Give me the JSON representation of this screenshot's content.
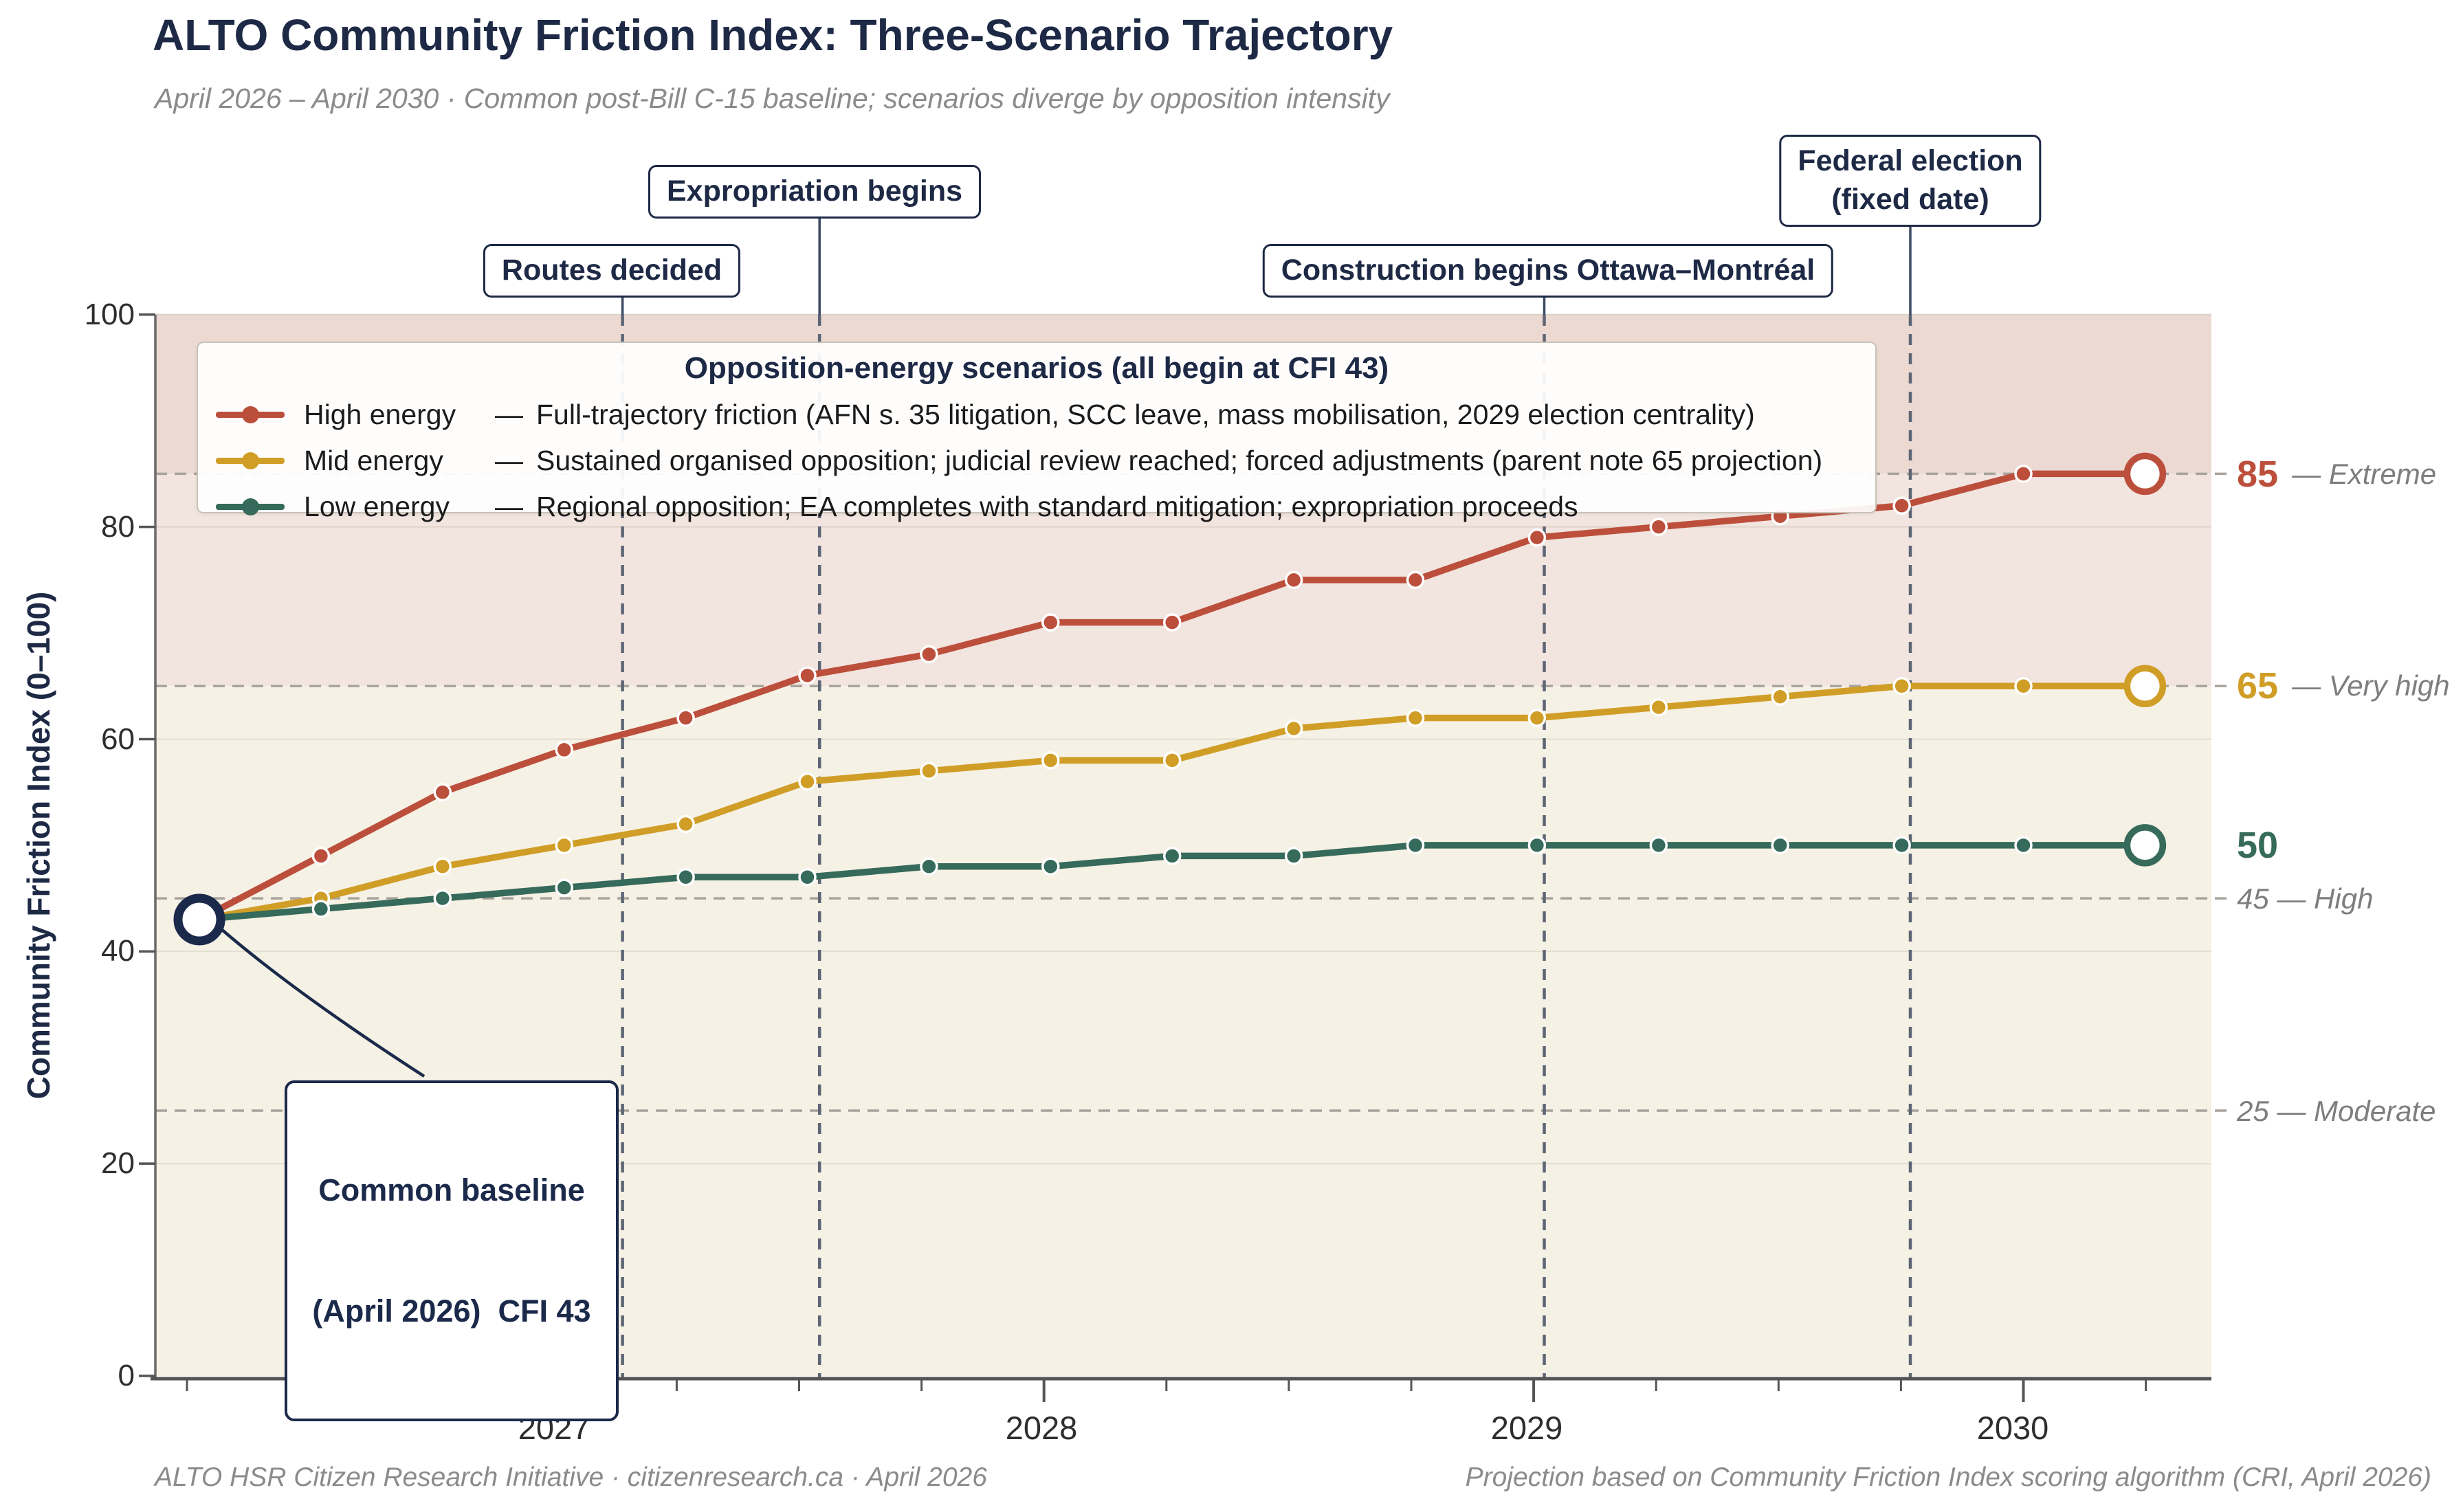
{
  "header": {
    "title": "ALTO Community Friction Index: Three-Scenario Trajectory",
    "subtitle": "April 2026 – April 2030   ·   Common post-Bill C-15 baseline; scenarios diverge by opposition intensity"
  },
  "chart_data": {
    "type": "line",
    "title": "ALTO Community Friction Index: Three-Scenario Trajectory",
    "ylabel": "Community Friction Index (0–100)",
    "ylim": [
      0,
      100
    ],
    "yticks": [
      0,
      20,
      40,
      60,
      80,
      100
    ],
    "x_quarters": [
      "Apr 2026",
      "Jul 2026",
      "Oct 2026",
      "Jan 2027",
      "Apr 2027",
      "Jul 2027",
      "Oct 2027",
      "Jan 2028",
      "Apr 2028",
      "Jul 2028",
      "Oct 2028",
      "Jan 2029",
      "Apr 2029",
      "Jul 2029",
      "Oct 2029",
      "Jan 2030",
      "Apr 2030"
    ],
    "xticks": [
      {
        "label": "2027",
        "q": 3
      },
      {
        "label": "2028",
        "q": 7
      },
      {
        "label": "2029",
        "q": 11
      },
      {
        "label": "2030",
        "q": 15
      }
    ],
    "baseline_value": 43,
    "series": [
      {
        "id": "high",
        "name": "High energy",
        "color": "#bc4f3c",
        "values": [
          43,
          49,
          55,
          59,
          62,
          66,
          68,
          71,
          71,
          75,
          75,
          79,
          80,
          81,
          82,
          85,
          85
        ],
        "end_value": 85
      },
      {
        "id": "mid",
        "name": "Mid energy",
        "color": "#d09e27",
        "values": [
          43,
          45,
          48,
          50,
          52,
          56,
          57,
          58,
          58,
          61,
          62,
          62,
          63,
          64,
          65,
          65,
          65
        ],
        "end_value": 65
      },
      {
        "id": "low",
        "name": "Low energy",
        "color": "#366a5a",
        "values": [
          43,
          44,
          45,
          46,
          47,
          47,
          48,
          48,
          49,
          49,
          50,
          50,
          50,
          50,
          50,
          50,
          50
        ],
        "end_value": 50
      }
    ],
    "thresholds": [
      {
        "value": 85,
        "label": "Extreme"
      },
      {
        "value": 65,
        "label": "Very high"
      },
      {
        "value": 45,
        "label": "High"
      },
      {
        "value": 25,
        "label": "Moderate"
      }
    ],
    "bands": [
      {
        "from": 85,
        "to": 100,
        "color": "#ebd9d2"
      },
      {
        "from": 65,
        "to": 85,
        "color": "#f2e5e0"
      },
      {
        "from": 0,
        "to": 65,
        "color": "#f5f1e5"
      }
    ],
    "events": [
      {
        "label": "Routes decided",
        "q": 3.48
      },
      {
        "label": "Expropriation begins",
        "q": 5.1
      },
      {
        "label": "Construction begins Ottawa–Montréal",
        "q": 11.06
      },
      {
        "label": "Federal election (fixed date)",
        "q": 14.07
      }
    ],
    "legend_position": "upper left",
    "grid": true
  },
  "legend": {
    "title": "Opposition-energy scenarios (all begin at CFI 43)",
    "items": [
      {
        "name": "High energy",
        "sep": "—",
        "desc": "Full-trajectory friction (AFN s. 35 litigation, SCC leave, mass mobilisation, 2029 election centrality)"
      },
      {
        "name": "Mid energy",
        "sep": "—",
        "desc": "Sustained organised opposition; judicial review reached; forced adjustments (parent note 65 projection)"
      },
      {
        "name": "Low energy",
        "sep": "—",
        "desc": "Regional opposition; EA completes with standard mitigation; expropriation proceeds"
      }
    ]
  },
  "event_boxes": {
    "routes": "Routes decided",
    "expropriation": "Expropriation begins",
    "construction": "Construction begins Ottawa–Montréal",
    "federal_line1": "Federal election",
    "federal_line2": "(fixed date)"
  },
  "baseline_callout": {
    "line1": "Common baseline",
    "line2": "(April 2026)  CFI 43"
  },
  "right_labels": [
    {
      "strong": "85",
      "muted": "— Extreme"
    },
    {
      "strong": "65",
      "muted": "— Very high"
    },
    {
      "strong": "50",
      "muted": ""
    },
    {
      "strong": "",
      "muted": "45 — High"
    },
    {
      "strong": "",
      "muted": "25 — Moderate"
    }
  ],
  "axis": {
    "ylabel": "Community Friction Index (0–100)",
    "yticks": [
      "0",
      "20",
      "40",
      "60",
      "80",
      "100"
    ],
    "xticks": [
      "2027",
      "2028",
      "2029",
      "2030"
    ]
  },
  "footer": {
    "left": "ALTO HSR Citizen Research Initiative   ·   citizenresearch.ca   ·   April 2026",
    "right": "Projection based on Community Friction Index scoring algorithm (CRI, April 2026)"
  },
  "colors": {
    "high": "#bc4f3c",
    "mid": "#d09e27",
    "low": "#366a5a",
    "navy": "#1d2945",
    "muted_gray": "#7e7e7e",
    "band_extreme": "#ebd9d2",
    "band_very_high": "#f2e5e0",
    "band_base": "#f5f1e5",
    "event_line": "#5d6575"
  }
}
